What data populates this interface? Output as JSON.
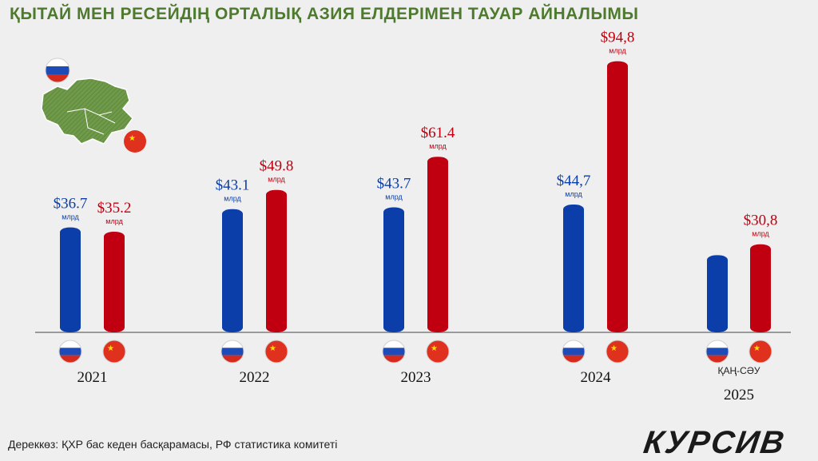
{
  "title": "ҚЫТАЙ МЕН РЕСЕЙДІҢ ОРТАЛЫҚ АЗИЯ ЕЛДЕРІМЕН ТАУАР АЙНАЛЫМЫ",
  "source": "Дереккөз: ҚХР бас кеден басқарамасы, РФ статистика комитеті",
  "logo_text": "КУРСИВ",
  "colors": {
    "russia": "#0b3ea8",
    "china": "#c00010",
    "title": "#4e7a2e",
    "map": "#6f9a4a",
    "axis": "#9a9a9a"
  },
  "icons": {
    "russia_flag": "russia-flag-icon",
    "china_flag": "china-flag-icon",
    "map": "central-asia-map-icon"
  },
  "chart_data": {
    "type": "bar",
    "title": "ҚЫТАЙ МЕН РЕСЕЙДІҢ ОРТАЛЫҚ АЗИЯ ЕЛДЕРІМЕН ТАУАР АЙНАЛЫМЫ",
    "categories": [
      "2021",
      "2022",
      "2023",
      "2024",
      "2025"
    ],
    "category_notes": [
      "",
      "",
      "",
      "",
      "ҚАҢ-СӘУ"
    ],
    "unit_label": "млрд",
    "series": [
      {
        "country": "russia",
        "values": [
          36.7,
          43.1,
          43.7,
          44.7,
          null
        ],
        "labels": [
          "$36.7",
          "$43.1",
          "$43.7",
          "$44,7",
          ""
        ],
        "bar_estimates": [
          null,
          null,
          null,
          null,
          27
        ]
      },
      {
        "country": "china",
        "values": [
          35.2,
          49.8,
          61.4,
          94.8,
          30.8
        ],
        "labels": [
          "$35.2",
          "$49.8",
          "$61.4",
          "$94,8",
          "$30,8"
        ]
      }
    ],
    "ylim": [
      0,
      100
    ],
    "grid": false,
    "legend": "flags below bars"
  }
}
